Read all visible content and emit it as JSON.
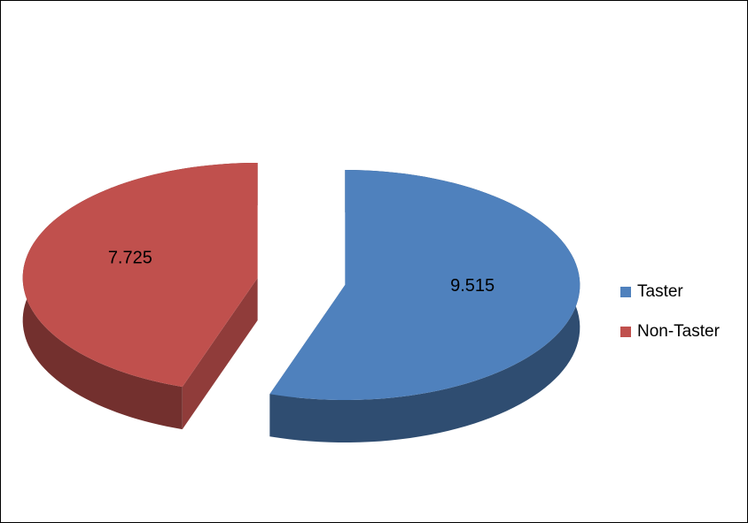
{
  "chart_data": {
    "type": "pie",
    "categories": [
      "Taster",
      "Non-Taster"
    ],
    "values": [
      9.515,
      7.725
    ],
    "colors": [
      "#4f81bd",
      "#c0504d"
    ],
    "legend": "right"
  }
}
